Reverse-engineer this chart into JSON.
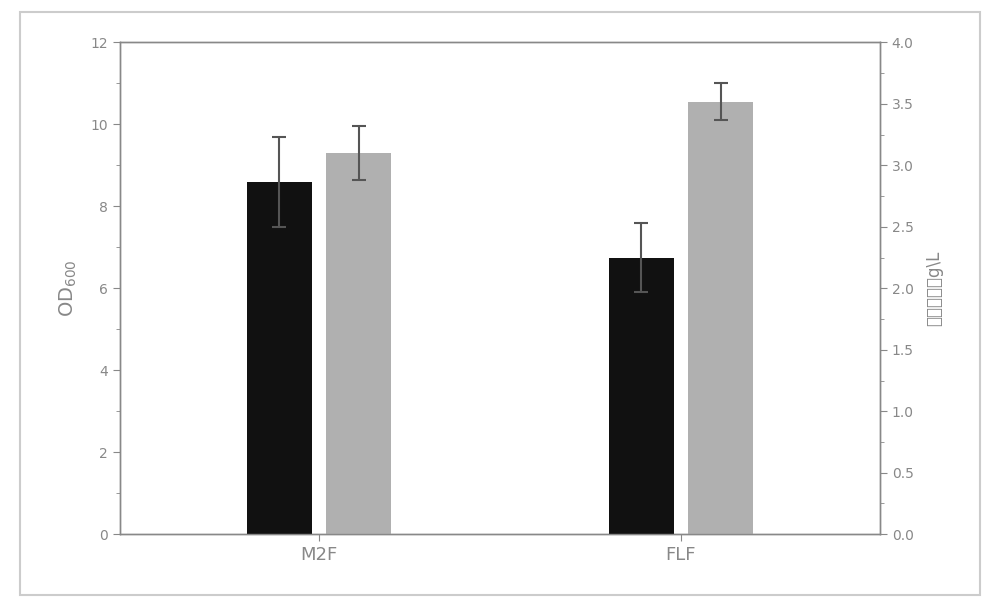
{
  "categories": [
    "M2F",
    "FLF"
  ],
  "black_bars": [
    8.6,
    6.75
  ],
  "gray_bars": [
    9.3,
    10.55
  ],
  "black_errors": [
    1.1,
    0.85
  ],
  "gray_errors": [
    0.65,
    0.45
  ],
  "bar_width": 0.18,
  "bar_gap": 0.04,
  "black_color": "#111111",
  "gray_color": "#b0b0b0",
  "left_ylabel": "OD$_{600}$",
  "right_ylabel": "蛋氨酸产量g\\L",
  "left_ylim": [
    0,
    12
  ],
  "right_ylim": [
    0,
    4
  ],
  "left_yticks": [
    0,
    2,
    4,
    6,
    8,
    10,
    12
  ],
  "right_yticks": [
    0,
    0.5,
    1.0,
    1.5,
    2.0,
    2.5,
    3.0,
    3.5,
    4.0
  ],
  "tick_label_color": "#888888",
  "spine_color": "#888888",
  "error_color": "#555555",
  "background_color": "#ffffff",
  "outer_border_color": "#cccccc",
  "figsize": [
    10.0,
    6.07
  ],
  "dpi": 100
}
